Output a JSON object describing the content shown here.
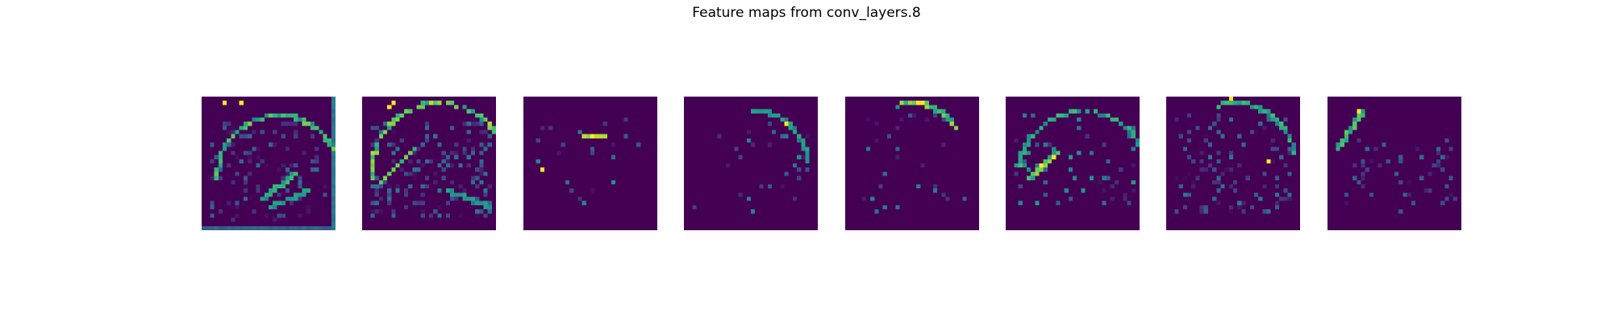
{
  "title": "Feature maps from conv_layers.8",
  "chart_data": {
    "type": "heatmap",
    "title": "Feature maps from conv_layers.8",
    "colormap": "viridis",
    "panels": 8,
    "grid": false,
    "axes": "off",
    "resolution": [
      32,
      32
    ],
    "value_range": [
      0,
      1
    ],
    "background_value": 0
  },
  "colors": {
    "background": "#ffffff",
    "viridis_low": "#440154",
    "viridis_mid": "#21918c",
    "viridis_high": "#fde725"
  }
}
